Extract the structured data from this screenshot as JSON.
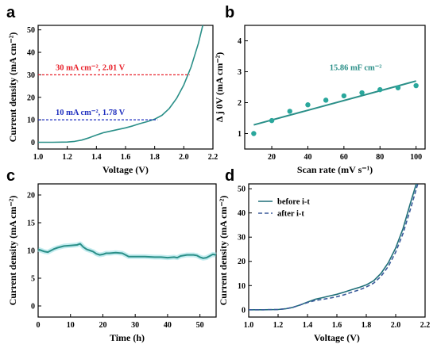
{
  "chart_data": [
    {
      "panel": "a",
      "type": "line",
      "xlabel": "Voltage (V)",
      "ylabel": "Current density (mA cm⁻²)",
      "xlim": [
        1.0,
        2.2
      ],
      "ylim": [
        -3,
        52
      ],
      "xticks": [
        "1.0",
        "1.2",
        "1.4",
        "1.6",
        "1.8",
        "2.0",
        "2.2"
      ],
      "yticks": [
        "0",
        "10",
        "20",
        "30",
        "40",
        "50"
      ],
      "color": "#2a8f88",
      "series": [
        {
          "x": [
            1.0,
            1.1,
            1.2,
            1.25,
            1.3,
            1.35,
            1.4,
            1.45,
            1.5,
            1.55,
            1.6,
            1.65,
            1.7,
            1.75,
            1.8,
            1.85,
            1.9,
            1.95,
            2.0,
            2.05,
            2.1,
            2.13
          ],
          "y": [
            0.0,
            0.0,
            0.1,
            0.4,
            1.0,
            2.0,
            3.2,
            4.3,
            5.0,
            5.7,
            6.4,
            7.3,
            8.3,
            9.2,
            10.3,
            12.0,
            15.0,
            19.5,
            25.5,
            33.5,
            44.0,
            52.0
          ]
        }
      ],
      "annotations": [
        {
          "label": "30 mA cm⁻², 2.01 V",
          "y": 30,
          "x_end": 2.01,
          "color": "#e8202a"
        },
        {
          "label": "10 mA cm⁻², 1.78 V",
          "y": 10,
          "x_end": 1.78,
          "color": "#1f2fbf"
        }
      ]
    },
    {
      "panel": "b",
      "type": "scatter",
      "xlabel": "Scan rate (mV s⁻¹)",
      "ylabel": "Δ j 0V (mA cm⁻²)",
      "xlim": [
        5,
        105
      ],
      "ylim": [
        0.5,
        4.5
      ],
      "xticks": [
        "20",
        "40",
        "60",
        "80",
        "100"
      ],
      "yticks": [
        "1",
        "2",
        "3",
        "4"
      ],
      "color": "#2a8f88",
      "series": [
        {
          "x": [
            10,
            20,
            30,
            40,
            50,
            60,
            70,
            80,
            90,
            100
          ],
          "y": [
            1.0,
            1.42,
            1.72,
            1.93,
            2.08,
            2.22,
            2.32,
            2.42,
            2.48,
            2.55
          ]
        }
      ],
      "fit": {
        "x": [
          10,
          100
        ],
        "y": [
          1.28,
          2.7
        ]
      },
      "annotation": "15.86 mF cm⁻²"
    },
    {
      "panel": "c",
      "type": "line",
      "xlabel": "Time (h)",
      "ylabel": "Current density (mA cm⁻²)",
      "xlim": [
        0,
        55
      ],
      "ylim": [
        -2,
        22
      ],
      "xticks": [
        "0",
        "10",
        "20",
        "30",
        "40",
        "50"
      ],
      "yticks": [
        "0",
        "5",
        "10",
        "15",
        "20"
      ],
      "color": "#2a8f88",
      "series": [
        {
          "x": [
            0,
            1,
            2,
            3,
            4,
            5,
            6,
            8,
            10,
            12,
            13,
            14,
            15,
            16,
            17,
            18,
            19,
            20,
            21,
            22,
            24,
            26,
            27,
            28,
            30,
            33,
            36,
            38,
            40,
            42,
            43,
            44,
            46,
            48,
            49,
            50,
            51,
            52,
            53,
            54,
            55
          ],
          "y": [
            10.2,
            10.0,
            9.8,
            9.7,
            10.0,
            10.3,
            10.5,
            10.8,
            10.9,
            11.0,
            11.2,
            10.6,
            10.2,
            10.0,
            9.8,
            9.4,
            9.2,
            9.3,
            9.5,
            9.5,
            9.6,
            9.5,
            9.2,
            8.9,
            8.9,
            8.9,
            8.8,
            8.8,
            8.7,
            8.8,
            8.7,
            9.0,
            9.2,
            9.2,
            9.1,
            8.8,
            8.6,
            8.7,
            9.0,
            9.3,
            9.2
          ]
        }
      ]
    },
    {
      "panel": "d",
      "type": "line",
      "xlabel": "Voltage (V)",
      "ylabel": "Current density (mA cm⁻²)",
      "xlim": [
        1.0,
        2.2
      ],
      "ylim": [
        -3,
        52
      ],
      "xticks": [
        "1.0",
        "1.2",
        "1.4",
        "1.6",
        "1.8",
        "2.0",
        "2.2"
      ],
      "yticks": [
        "0",
        "10",
        "20",
        "30",
        "40",
        "50"
      ],
      "series": [
        {
          "name": "before i-t",
          "style": "solid",
          "color": "#1f6f78",
          "x": [
            1.0,
            1.1,
            1.2,
            1.25,
            1.3,
            1.35,
            1.4,
            1.45,
            1.5,
            1.55,
            1.6,
            1.65,
            1.7,
            1.75,
            1.8,
            1.85,
            1.9,
            1.95,
            2.0,
            2.05,
            2.1,
            2.14
          ],
          "y": [
            0.0,
            0.0,
            0.1,
            0.4,
            1.0,
            2.0,
            3.2,
            4.3,
            5.0,
            5.7,
            6.4,
            7.3,
            8.3,
            9.2,
            10.3,
            12.0,
            15.0,
            19.5,
            25.5,
            33.5,
            44.0,
            52.0
          ]
        },
        {
          "name": "after i-t",
          "style": "dashed",
          "color": "#3a5a9a",
          "x": [
            1.0,
            1.1,
            1.2,
            1.25,
            1.3,
            1.35,
            1.4,
            1.45,
            1.5,
            1.55,
            1.6,
            1.65,
            1.7,
            1.75,
            1.8,
            1.85,
            1.9,
            1.95,
            2.0,
            2.05,
            2.1,
            2.15
          ],
          "y": [
            0.0,
            0.0,
            0.1,
            0.4,
            1.0,
            2.0,
            3.0,
            3.8,
            4.3,
            4.8,
            5.4,
            6.2,
            7.2,
            8.2,
            9.4,
            11.0,
            13.8,
            18.0,
            23.8,
            31.5,
            41.5,
            52.0
          ]
        }
      ]
    }
  ]
}
